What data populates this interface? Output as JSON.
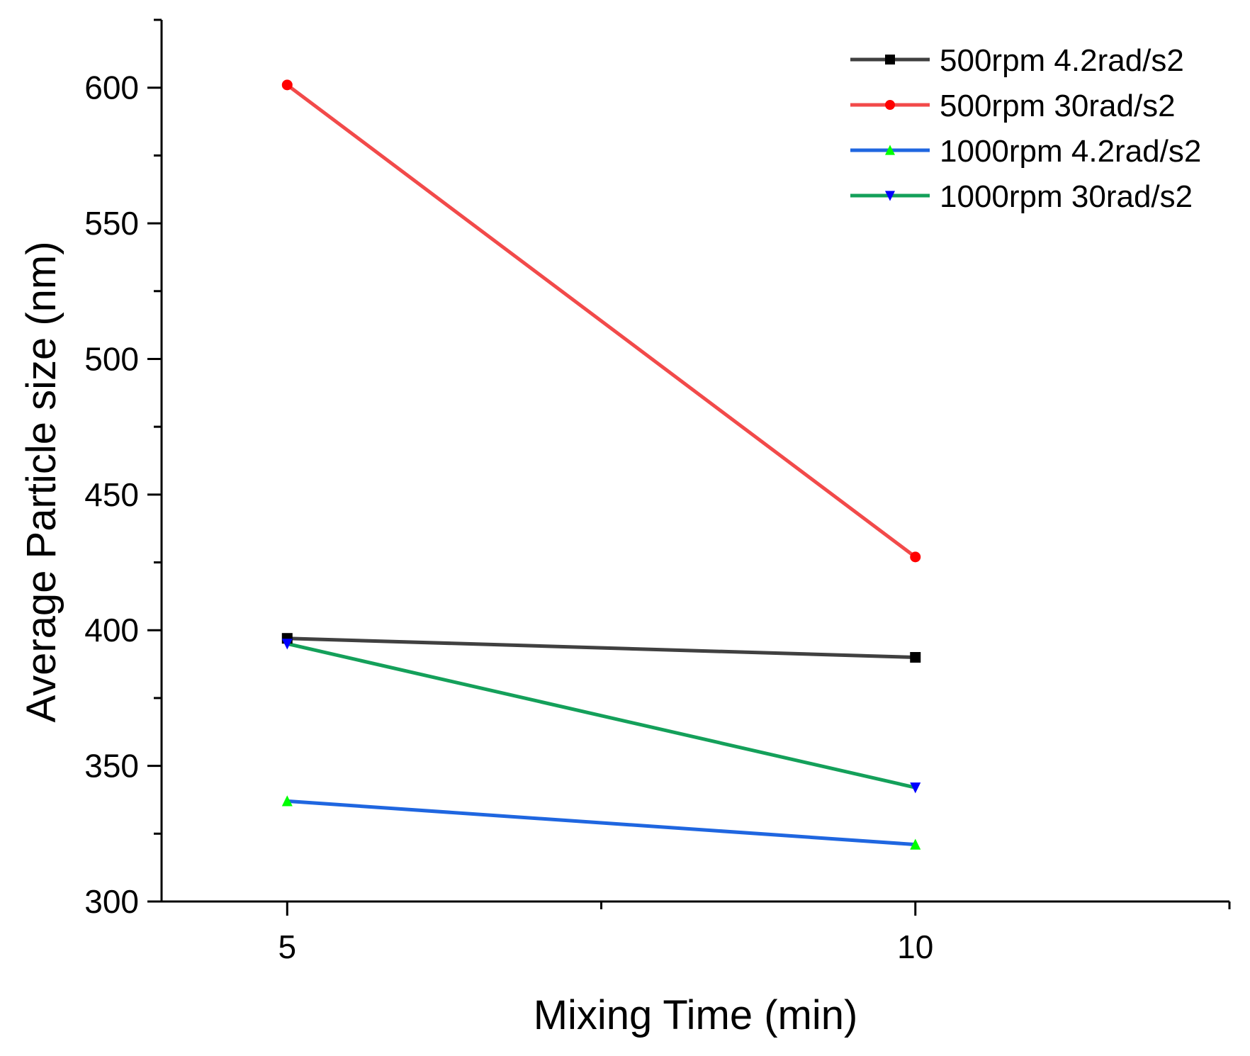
{
  "chart_data": {
    "type": "line",
    "title": "",
    "xlabel": "Mixing Time (min)",
    "ylabel": "Average Particle size (nm)",
    "x": [
      5,
      10
    ],
    "xlim": [
      4,
      12.5
    ],
    "ylim": [
      300,
      625
    ],
    "xticks": [
      5,
      10
    ],
    "yticks": [
      300,
      350,
      400,
      450,
      500,
      550,
      600
    ],
    "legend_position": "top-right",
    "grid": false,
    "series": [
      {
        "name": "500rpm 4.2rad/s2",
        "values": [
          397,
          390
        ],
        "line_color": "#404040",
        "marker_color": "#000000",
        "marker": "square"
      },
      {
        "name": "500rpm 30rad/s2",
        "values": [
          601,
          427
        ],
        "line_color": "#f24a4a",
        "marker_color": "#ff0000",
        "marker": "circle"
      },
      {
        "name": "1000rpm 4.2rad/s2",
        "values": [
          337,
          321
        ],
        "line_color": "#1f66e0",
        "marker_color": "#00ff00",
        "marker": "triangle-up"
      },
      {
        "name": "1000rpm 30rad/s2",
        "values": [
          395,
          342
        ],
        "line_color": "#14a05a",
        "marker_color": "#0000ff",
        "marker": "triangle-down"
      }
    ]
  }
}
